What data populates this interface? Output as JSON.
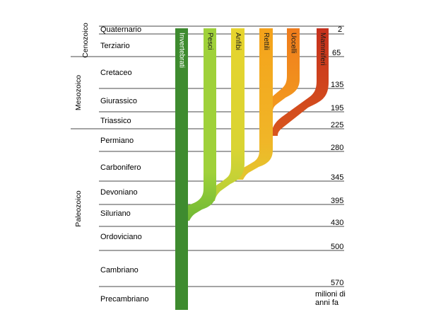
{
  "eras": [
    {
      "id": "cenozoico",
      "label": "Cenozoico"
    },
    {
      "id": "mesozoico",
      "label": "Mesozoico"
    },
    {
      "id": "paleozoico",
      "label": "Paleozoico"
    }
  ],
  "periods": [
    {
      "id": "quaternario",
      "label": "Quaternario"
    },
    {
      "id": "terziario",
      "label": "Terziario"
    },
    {
      "id": "cretaceo",
      "label": "Cretaceo"
    },
    {
      "id": "giurassico",
      "label": "Giurassico"
    },
    {
      "id": "triassico",
      "label": "Triassico"
    },
    {
      "id": "permiano",
      "label": "Permiano"
    },
    {
      "id": "carbonifero",
      "label": "Carbonifero"
    },
    {
      "id": "devoniano",
      "label": "Devoniano"
    },
    {
      "id": "siluriano",
      "label": "Siluriano"
    },
    {
      "id": "ordoviciano",
      "label": "Ordoviciano"
    },
    {
      "id": "cambriano",
      "label": "Cambriano"
    },
    {
      "id": "precambriano",
      "label": "Precambriano"
    }
  ],
  "boundaries_mya": [
    "2",
    "65",
    "135",
    "195",
    "225",
    "280",
    "345",
    "395",
    "430",
    "500",
    "570"
  ],
  "unit_label": [
    "milioni di",
    "anni fa"
  ],
  "lineages": [
    {
      "id": "invertebrati",
      "label": "Invertebrati",
      "color": "#3d8c2e"
    },
    {
      "id": "pesci",
      "label": "Pesci",
      "color": "#a8d23a"
    },
    {
      "id": "anfibi",
      "label": "Anfibi",
      "color": "#e6d22e"
    },
    {
      "id": "rettili",
      "label": "Rettili",
      "color": "#f2a21c"
    },
    {
      "id": "uccelli",
      "label": "Uccelli",
      "color": "#ef7d1e"
    },
    {
      "id": "mammiferi",
      "label": "Mammiferi",
      "color": "#c8321e"
    }
  ]
}
